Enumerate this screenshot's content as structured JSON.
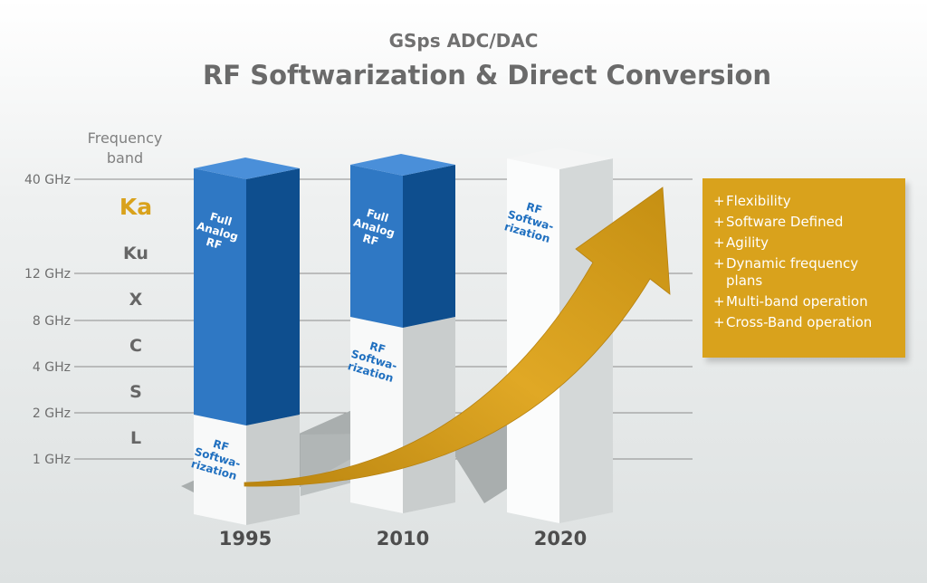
{
  "header": {
    "subtitle": "GSps ADC/DAC",
    "title": "RF Softwarization & Direct Conversion"
  },
  "axis": {
    "title_line1": "Frequency",
    "title_line2": "band",
    "ticks": [
      "40 GHz",
      "12 GHz",
      "8 GHz",
      "4 GHz",
      "2 GHz",
      "1 GHz"
    ],
    "bands": [
      "Ka",
      "Ku",
      "X",
      "C",
      "S",
      "L"
    ],
    "highlight_band": "Ka"
  },
  "columns": [
    {
      "year": "1995",
      "analog_label": [
        "Full",
        "Analog",
        "RF"
      ],
      "soft_label": [
        "RF",
        "Softwa-",
        "rization"
      ]
    },
    {
      "year": "2010",
      "analog_label": [
        "Full",
        "Analog",
        "RF"
      ],
      "soft_label": [
        "RF",
        "Softwa-",
        "rization"
      ]
    },
    {
      "year": "2020",
      "soft_label": [
        "RF",
        "Softwa-",
        "rization"
      ]
    }
  ],
  "benefits": [
    "Flexibility",
    "Software Defined",
    "Agility",
    "Dynamic frequency plans",
    "Multi-band operation",
    "Cross-Band operation"
  ],
  "colors": {
    "analog_front": "#2f78c4",
    "analog_side": "#0e4e8e",
    "analog_top": "#4a8fd9",
    "white_front": "#f8f9f9",
    "white_side": "#c9cdcd",
    "white_top": "#eef0f0",
    "accent": "#d9a21c",
    "label_blue": "#1f6fbf",
    "grid": "#8c8c8c"
  }
}
